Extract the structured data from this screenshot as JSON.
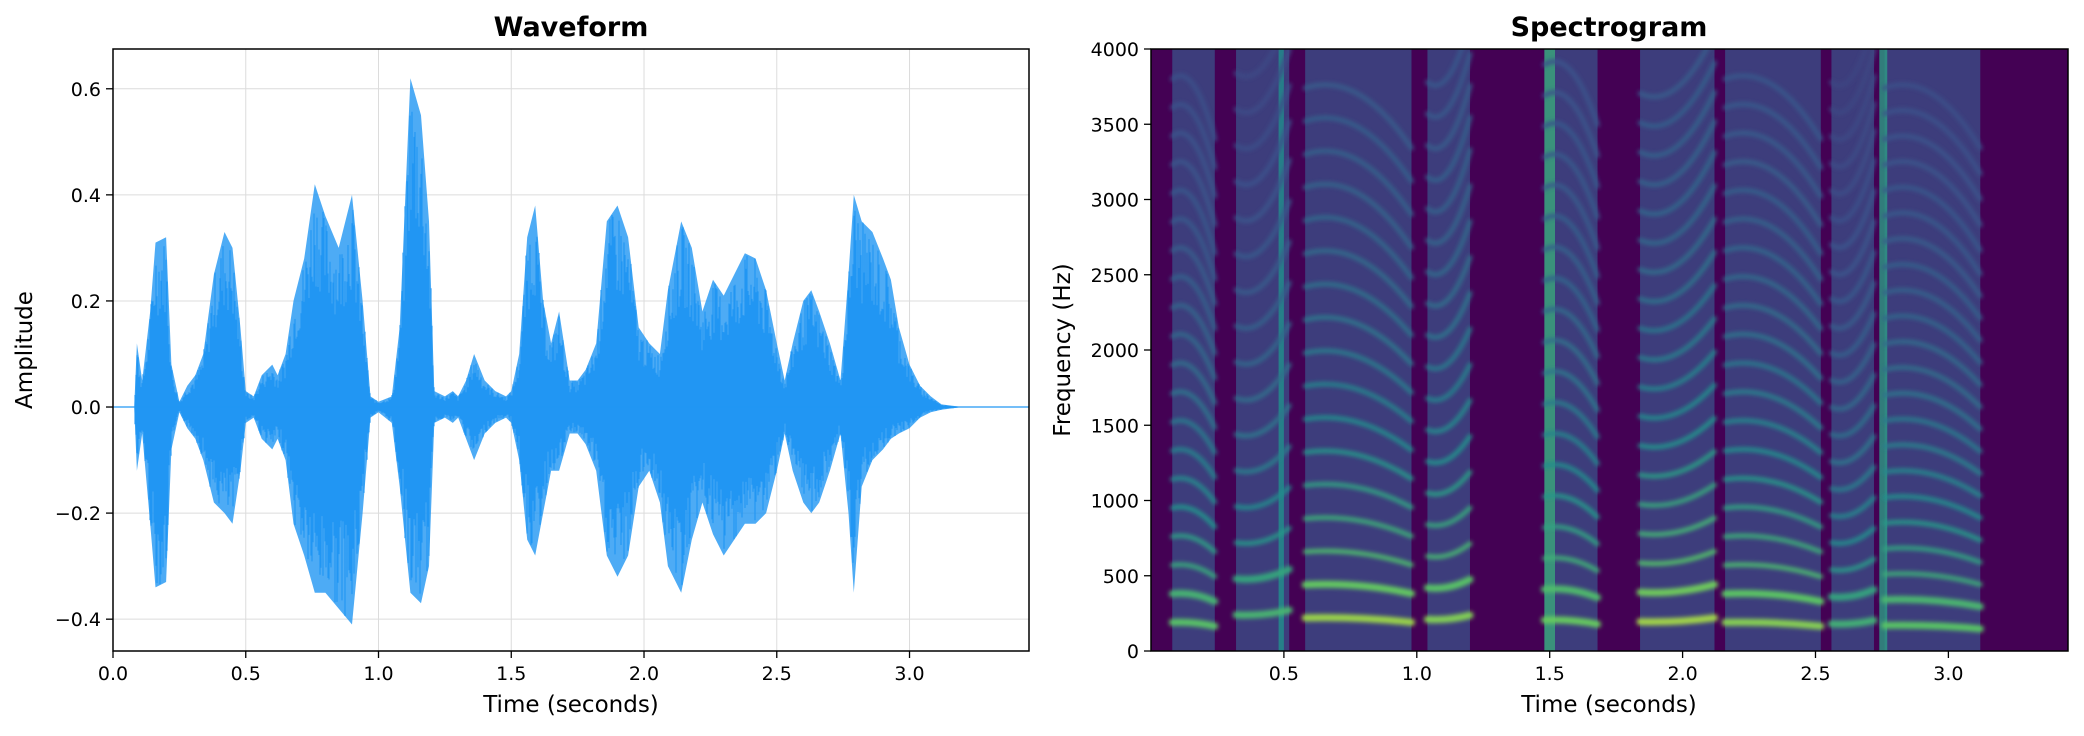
{
  "chart_data": [
    {
      "type": "area",
      "title": "Waveform",
      "xlabel": "Time (seconds)",
      "ylabel": "Amplitude",
      "xlim": [
        0.0,
        3.45
      ],
      "ylim": [
        -0.46,
        0.675
      ],
      "xticks": [
        0.0,
        0.5,
        1.0,
        1.5,
        2.0,
        2.5,
        3.0
      ],
      "xtick_labels": [
        "0.0",
        "0.5",
        "1.0",
        "1.5",
        "2.0",
        "2.5",
        "3.0"
      ],
      "yticks": [
        -0.4,
        -0.2,
        0.0,
        0.2,
        0.4,
        0.6
      ],
      "ytick_labels": [
        "−0.4",
        "−0.2",
        "0.0",
        "0.2",
        "0.4",
        "0.6"
      ],
      "grid": true,
      "color": "#2196f3",
      "series": [
        {
          "upper": [
            [
              0.0,
              0.0
            ],
            [
              0.08,
              0.0
            ],
            [
              0.09,
              0.12
            ],
            [
              0.11,
              0.05
            ],
            [
              0.14,
              0.18
            ],
            [
              0.16,
              0.31
            ],
            [
              0.2,
              0.32
            ],
            [
              0.22,
              0.08
            ],
            [
              0.25,
              0.01
            ],
            [
              0.28,
              0.04
            ],
            [
              0.31,
              0.06
            ],
            [
              0.34,
              0.1
            ],
            [
              0.38,
              0.25
            ],
            [
              0.42,
              0.33
            ],
            [
              0.45,
              0.3
            ],
            [
              0.48,
              0.15
            ],
            [
              0.5,
              0.03
            ],
            [
              0.53,
              0.02
            ],
            [
              0.56,
              0.06
            ],
            [
              0.6,
              0.08
            ],
            [
              0.62,
              0.06
            ],
            [
              0.65,
              0.1
            ],
            [
              0.68,
              0.2
            ],
            [
              0.72,
              0.28
            ],
            [
              0.76,
              0.42
            ],
            [
              0.8,
              0.36
            ],
            [
              0.85,
              0.3
            ],
            [
              0.9,
              0.4
            ],
            [
              0.94,
              0.2
            ],
            [
              0.97,
              0.02
            ],
            [
              1.0,
              0.01
            ],
            [
              1.05,
              0.02
            ],
            [
              1.08,
              0.15
            ],
            [
              1.12,
              0.62
            ],
            [
              1.16,
              0.55
            ],
            [
              1.19,
              0.35
            ],
            [
              1.21,
              0.03
            ],
            [
              1.25,
              0.02
            ],
            [
              1.28,
              0.03
            ],
            [
              1.3,
              0.02
            ],
            [
              1.33,
              0.05
            ],
            [
              1.36,
              0.1
            ],
            [
              1.4,
              0.05
            ],
            [
              1.44,
              0.03
            ],
            [
              1.48,
              0.02
            ],
            [
              1.5,
              0.03
            ],
            [
              1.53,
              0.1
            ],
            [
              1.56,
              0.32
            ],
            [
              1.59,
              0.38
            ],
            [
              1.62,
              0.2
            ],
            [
              1.65,
              0.12
            ],
            [
              1.68,
              0.18
            ],
            [
              1.72,
              0.05
            ],
            [
              1.75,
              0.05
            ],
            [
              1.78,
              0.07
            ],
            [
              1.82,
              0.12
            ],
            [
              1.86,
              0.35
            ],
            [
              1.9,
              0.38
            ],
            [
              1.94,
              0.32
            ],
            [
              1.98,
              0.15
            ],
            [
              2.02,
              0.12
            ],
            [
              2.06,
              0.1
            ],
            [
              2.09,
              0.22
            ],
            [
              2.14,
              0.35
            ],
            [
              2.18,
              0.3
            ],
            [
              2.22,
              0.18
            ],
            [
              2.26,
              0.24
            ],
            [
              2.3,
              0.21
            ],
            [
              2.34,
              0.25
            ],
            [
              2.38,
              0.29
            ],
            [
              2.42,
              0.28
            ],
            [
              2.46,
              0.22
            ],
            [
              2.5,
              0.12
            ],
            [
              2.53,
              0.05
            ],
            [
              2.56,
              0.12
            ],
            [
              2.6,
              0.2
            ],
            [
              2.63,
              0.22
            ],
            [
              2.66,
              0.18
            ],
            [
              2.7,
              0.12
            ],
            [
              2.74,
              0.05
            ],
            [
              2.77,
              0.25
            ],
            [
              2.79,
              0.4
            ],
            [
              2.82,
              0.35
            ],
            [
              2.86,
              0.33
            ],
            [
              2.9,
              0.28
            ],
            [
              2.93,
              0.24
            ],
            [
              2.96,
              0.15
            ],
            [
              3.0,
              0.08
            ],
            [
              3.04,
              0.04
            ],
            [
              3.08,
              0.02
            ],
            [
              3.12,
              0.005
            ],
            [
              3.2,
              0.0
            ],
            [
              3.45,
              0.0
            ]
          ],
          "lower": [
            [
              0.0,
              0.0
            ],
            [
              0.08,
              0.0
            ],
            [
              0.09,
              -0.12
            ],
            [
              0.11,
              -0.05
            ],
            [
              0.14,
              -0.22
            ],
            [
              0.16,
              -0.34
            ],
            [
              0.2,
              -0.33
            ],
            [
              0.22,
              -0.08
            ],
            [
              0.25,
              -0.01
            ],
            [
              0.28,
              -0.04
            ],
            [
              0.31,
              -0.06
            ],
            [
              0.34,
              -0.1
            ],
            [
              0.38,
              -0.18
            ],
            [
              0.42,
              -0.2
            ],
            [
              0.45,
              -0.22
            ],
            [
              0.48,
              -0.12
            ],
            [
              0.5,
              -0.03
            ],
            [
              0.53,
              -0.02
            ],
            [
              0.56,
              -0.06
            ],
            [
              0.6,
              -0.08
            ],
            [
              0.62,
              -0.06
            ],
            [
              0.65,
              -0.1
            ],
            [
              0.68,
              -0.22
            ],
            [
              0.72,
              -0.28
            ],
            [
              0.76,
              -0.35
            ],
            [
              0.8,
              -0.35
            ],
            [
              0.85,
              -0.38
            ],
            [
              0.9,
              -0.41
            ],
            [
              0.94,
              -0.2
            ],
            [
              0.97,
              -0.02
            ],
            [
              1.0,
              -0.01
            ],
            [
              1.05,
              -0.03
            ],
            [
              1.08,
              -0.15
            ],
            [
              1.12,
              -0.35
            ],
            [
              1.16,
              -0.37
            ],
            [
              1.19,
              -0.3
            ],
            [
              1.21,
              -0.03
            ],
            [
              1.25,
              -0.02
            ],
            [
              1.28,
              -0.03
            ],
            [
              1.3,
              -0.02
            ],
            [
              1.33,
              -0.06
            ],
            [
              1.36,
              -0.1
            ],
            [
              1.4,
              -0.05
            ],
            [
              1.44,
              -0.03
            ],
            [
              1.48,
              -0.02
            ],
            [
              1.5,
              -0.03
            ],
            [
              1.53,
              -0.1
            ],
            [
              1.56,
              -0.25
            ],
            [
              1.59,
              -0.28
            ],
            [
              1.62,
              -0.2
            ],
            [
              1.65,
              -0.12
            ],
            [
              1.68,
              -0.12
            ],
            [
              1.72,
              -0.05
            ],
            [
              1.75,
              -0.05
            ],
            [
              1.78,
              -0.07
            ],
            [
              1.82,
              -0.12
            ],
            [
              1.86,
              -0.28
            ],
            [
              1.9,
              -0.32
            ],
            [
              1.94,
              -0.28
            ],
            [
              1.98,
              -0.15
            ],
            [
              2.02,
              -0.12
            ],
            [
              2.06,
              -0.18
            ],
            [
              2.09,
              -0.3
            ],
            [
              2.14,
              -0.35
            ],
            [
              2.18,
              -0.25
            ],
            [
              2.22,
              -0.18
            ],
            [
              2.26,
              -0.24
            ],
            [
              2.3,
              -0.28
            ],
            [
              2.34,
              -0.25
            ],
            [
              2.38,
              -0.22
            ],
            [
              2.42,
              -0.22
            ],
            [
              2.46,
              -0.2
            ],
            [
              2.5,
              -0.12
            ],
            [
              2.53,
              -0.05
            ],
            [
              2.56,
              -0.12
            ],
            [
              2.6,
              -0.18
            ],
            [
              2.63,
              -0.2
            ],
            [
              2.66,
              -0.18
            ],
            [
              2.7,
              -0.12
            ],
            [
              2.74,
              -0.05
            ],
            [
              2.77,
              -0.2
            ],
            [
              2.79,
              -0.35
            ],
            [
              2.82,
              -0.15
            ],
            [
              2.86,
              -0.1
            ],
            [
              2.9,
              -0.08
            ],
            [
              2.93,
              -0.06
            ],
            [
              2.96,
              -0.05
            ],
            [
              3.0,
              -0.04
            ],
            [
              3.04,
              -0.02
            ],
            [
              3.08,
              -0.01
            ],
            [
              3.12,
              -0.005
            ],
            [
              3.2,
              0.0
            ],
            [
              3.45,
              0.0
            ]
          ]
        }
      ]
    },
    {
      "type": "heatmap",
      "title": "Spectrogram",
      "xlabel": "Time (seconds)",
      "ylabel": "Frequency (Hz)",
      "xlim": [
        0.0,
        3.45
      ],
      "ylim": [
        0,
        4000
      ],
      "xticks": [
        0.5,
        1.0,
        1.5,
        2.0,
        2.5,
        3.0
      ],
      "xtick_labels": [
        "0.5",
        "1.0",
        "1.5",
        "2.0",
        "2.5",
        "3.0"
      ],
      "yticks": [
        0,
        500,
        1000,
        1500,
        2000,
        2500,
        3000,
        3500,
        4000
      ],
      "ytick_labels": [
        "0",
        "500",
        "1000",
        "1500",
        "2000",
        "2500",
        "3000",
        "3500",
        "4000"
      ],
      "colormap": "viridis",
      "colors": {
        "low": "#440154",
        "mid": "#21918c",
        "high": "#fde725"
      },
      "voiced_segments": [
        {
          "start": 0.08,
          "end": 0.24,
          "f0": 190,
          "level": 0.8
        },
        {
          "start": 0.32,
          "end": 0.52,
          "f0": 240,
          "level": 0.75
        },
        {
          "start": 0.58,
          "end": 0.98,
          "f0": 220,
          "level": 0.95
        },
        {
          "start": 1.04,
          "end": 1.2,
          "f0": 210,
          "level": 0.9
        },
        {
          "start": 1.48,
          "end": 1.68,
          "f0": 205,
          "level": 0.85
        },
        {
          "start": 1.84,
          "end": 2.12,
          "f0": 195,
          "level": 0.95
        },
        {
          "start": 2.16,
          "end": 2.52,
          "f0": 190,
          "level": 0.9
        },
        {
          "start": 2.56,
          "end": 2.72,
          "f0": 180,
          "level": 0.7
        },
        {
          "start": 2.76,
          "end": 3.12,
          "f0": 170,
          "level": 0.8
        }
      ],
      "fricatives": [
        {
          "start": 0.48,
          "end": 0.5,
          "level": 0.5
        },
        {
          "start": 1.48,
          "end": 1.52,
          "level": 0.6
        },
        {
          "start": 2.74,
          "end": 2.77,
          "level": 0.55
        }
      ]
    }
  ]
}
